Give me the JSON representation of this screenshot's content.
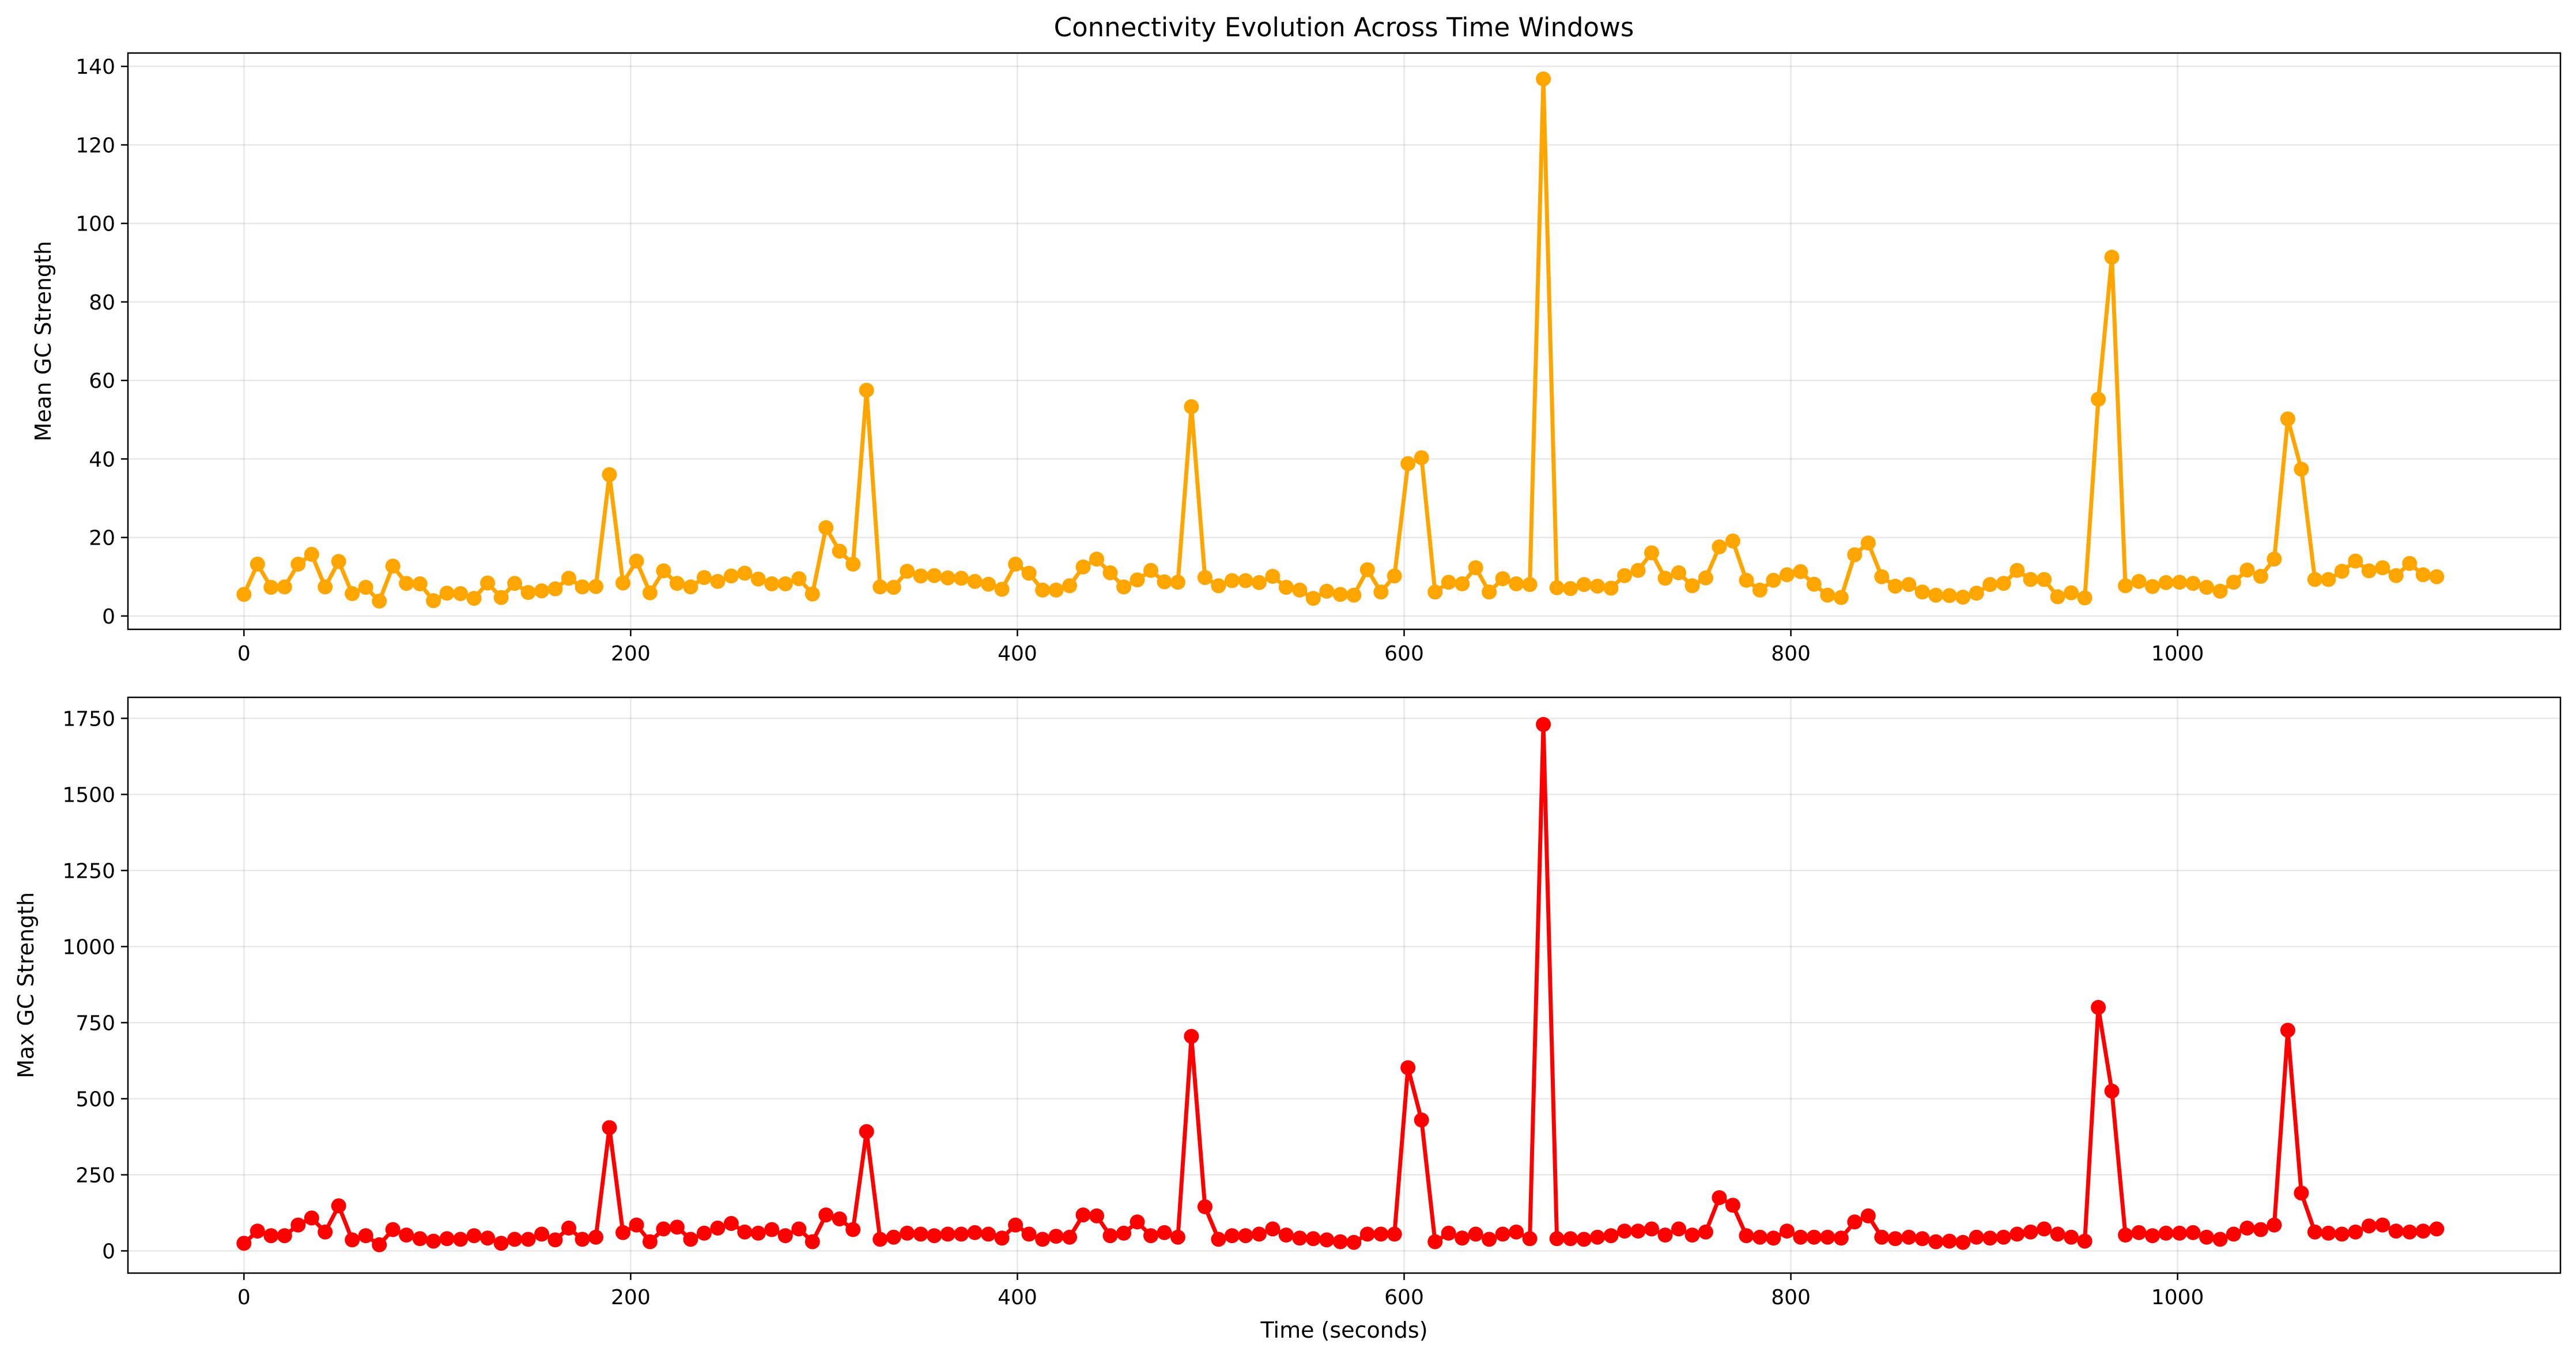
{
  "chart_data": [
    {
      "type": "line",
      "title": "Connectivity Evolution Across Time Windows",
      "xlabel": "",
      "ylabel": "Mean GC Strength",
      "xlim": [
        -60,
        1198
      ],
      "ylim": [
        -3.4,
        143.4
      ],
      "xticks": [
        "0",
        "200",
        "400",
        "600",
        "800",
        "1000"
      ],
      "xtick_values": [
        0,
        200,
        400,
        600,
        800,
        1000
      ],
      "yticks": [
        "0",
        "20",
        "40",
        "60",
        "80",
        "100",
        "120",
        "140"
      ],
      "ytick_values": [
        0,
        20,
        40,
        60,
        80,
        100,
        120,
        140
      ],
      "grid": true,
      "color": "#FFA500",
      "x_start": 0,
      "x_step": 7,
      "values": [
        5.5,
        13.2,
        7.3,
        7.4,
        13.2,
        15.7,
        7.4,
        13.9,
        5.7,
        7.3,
        3.8,
        12.7,
        8.3,
        8.2,
        3.9,
        5.8,
        5.7,
        4.5,
        8.4,
        4.7,
        8.3,
        6.0,
        6.4,
        6.9,
        9.6,
        7.4,
        7.5,
        36.0,
        8.4,
        14.0,
        5.9,
        11.5,
        8.3,
        7.4,
        9.8,
        8.8,
        10.2,
        10.9,
        9.4,
        8.2,
        8.2,
        9.5,
        5.6,
        22.5,
        16.5,
        13.2,
        57.5,
        7.4,
        7.3,
        11.4,
        10.2,
        10.3,
        9.7,
        9.6,
        8.8,
        8.1,
        6.8,
        13.2,
        10.9,
        6.6,
        6.6,
        7.7,
        12.5,
        14.5,
        11.0,
        7.4,
        9.2,
        11.6,
        8.7,
        8.6,
        53.3,
        9.8,
        7.7,
        9.0,
        9.0,
        8.5,
        10.1,
        7.3,
        6.6,
        4.5,
        6.3,
        5.5,
        5.3,
        11.8,
        6.1,
        10.2,
        38.8,
        40.3,
        6.1,
        8.6,
        8.2,
        12.3,
        6.1,
        9.5,
        8.2,
        8.0,
        136.8,
        7.2,
        7.0,
        8.0,
        7.6,
        7.1,
        10.3,
        11.6,
        16.1,
        9.6,
        11.0,
        7.7,
        9.7,
        17.6,
        19.1,
        9.1,
        6.6,
        9.1,
        10.5,
        11.3,
        8.1,
        5.3,
        4.7,
        15.6,
        18.6,
        10.0,
        7.6,
        8.0,
        6.1,
        5.3,
        5.2,
        4.8,
        5.8,
        8.0,
        8.3,
        11.6,
        9.3,
        9.3,
        4.9,
        5.9,
        4.6,
        55.2,
        91.4,
        7.7,
        8.8,
        7.5,
        8.5,
        8.6,
        8.3,
        7.3,
        6.3,
        8.6,
        11.7,
        10.1,
        14.5,
        50.2,
        37.4,
        9.3,
        9.3,
        11.4,
        14.0,
        11.5,
        12.3,
        10.3,
        13.4,
        10.5,
        10.0
      ]
    },
    {
      "type": "line",
      "title": "",
      "xlabel": "Time (seconds)",
      "ylabel": "Max GC Strength",
      "xlim": [
        -60,
        1198
      ],
      "ylim": [
        -73,
        1819
      ],
      "xticks": [
        "0",
        "200",
        "400",
        "600",
        "800",
        "1000"
      ],
      "xtick_values": [
        0,
        200,
        400,
        600,
        800,
        1000
      ],
      "yticks": [
        "0",
        "250",
        "500",
        "750",
        "1000",
        "1250",
        "1500",
        "1750"
      ],
      "ytick_values": [
        0,
        250,
        500,
        750,
        1000,
        1250,
        1500,
        1750
      ],
      "grid": true,
      "color": "#FF0000",
      "x_start": 0,
      "x_step": 7,
      "values": [
        25,
        65,
        50,
        50,
        85,
        108,
        62,
        148,
        36,
        50,
        20,
        70,
        52,
        40,
        32,
        40,
        38,
        50,
        42,
        25,
        38,
        38,
        55,
        36,
        75,
        38,
        45,
        405,
        60,
        85,
        30,
        72,
        78,
        38,
        58,
        75,
        90,
        62,
        58,
        70,
        50,
        72,
        30,
        118,
        105,
        70,
        392,
        38,
        45,
        58,
        55,
        50,
        55,
        55,
        60,
        55,
        42,
        85,
        55,
        38,
        48,
        45,
        118,
        115,
        50,
        58,
        95,
        50,
        60,
        45,
        705,
        145,
        38,
        50,
        50,
        55,
        72,
        52,
        42,
        40,
        36,
        30,
        28,
        55,
        55,
        55,
        602,
        430,
        30,
        58,
        42,
        55,
        38,
        55,
        62,
        40,
        1730,
        40,
        40,
        38,
        45,
        50,
        65,
        65,
        72,
        52,
        72,
        52,
        62,
        175,
        150,
        50,
        45,
        42,
        65,
        45,
        45,
        45,
        42,
        95,
        115,
        45,
        40,
        45,
        40,
        30,
        32,
        28,
        45,
        42,
        45,
        55,
        62,
        72,
        55,
        45,
        32,
        800,
        525,
        52,
        60,
        50,
        58,
        58,
        60,
        45,
        38,
        55,
        75,
        70,
        85,
        725,
        190,
        62,
        58,
        55,
        62,
        82,
        85,
        65,
        62,
        65,
        72
      ]
    }
  ]
}
